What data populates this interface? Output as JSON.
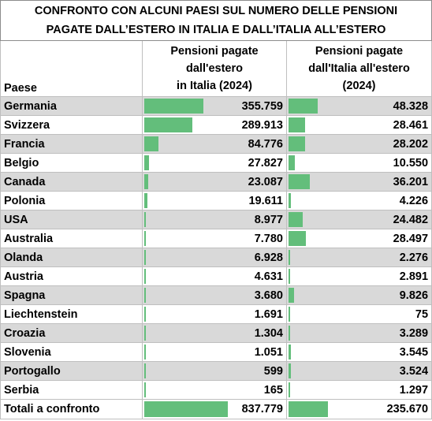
{
  "title_line1": "CONFRONTO CON ALCUNI PAESI SUL NUMERO DELLE PENSIONI",
  "title_line2": "PAGATE DALL’ESTERO IN ITALIA E DALL’ITALIA ALL’ESTERO",
  "headers": {
    "country": "Paese",
    "col1": [
      "Pensioni pagate",
      "dall'estero",
      "in Italia (2024)"
    ],
    "col2": [
      "Pensioni pagate",
      "dall'Italia all'estero",
      "(2024)"
    ]
  },
  "bar_color": "#63be7b",
  "shade_color": "#d9d9d9",
  "rows": [
    {
      "country": "Germania",
      "col1": "355.759",
      "col2": "48.328",
      "v1": 355759,
      "v2": 48328
    },
    {
      "country": "Svizzera",
      "col1": "289.913",
      "col2": "28.461",
      "v1": 289913,
      "v2": 28461
    },
    {
      "country": "Francia",
      "col1": "84.776",
      "col2": "28.202",
      "v1": 84776,
      "v2": 28202
    },
    {
      "country": "Belgio",
      "col1": "27.827",
      "col2": "10.550",
      "v1": 27827,
      "v2": 10550
    },
    {
      "country": "Canada",
      "col1": "23.087",
      "col2": "36.201",
      "v1": 23087,
      "v2": 36201
    },
    {
      "country": "Polonia",
      "col1": "19.611",
      "col2": "4.226",
      "v1": 19611,
      "v2": 4226
    },
    {
      "country": "USA",
      "col1": "8.977",
      "col2": "24.482",
      "v1": 8977,
      "v2": 24482
    },
    {
      "country": "Australia",
      "col1": "7.780",
      "col2": "28.497",
      "v1": 7780,
      "v2": 28497
    },
    {
      "country": "Olanda",
      "col1": "6.928",
      "col2": "2.276",
      "v1": 6928,
      "v2": 2276
    },
    {
      "country": "Austria",
      "col1": "4.631",
      "col2": "2.891",
      "v1": 4631,
      "v2": 2891
    },
    {
      "country": "Spagna",
      "col1": "3.680",
      "col2": "9.826",
      "v1": 3680,
      "v2": 9826
    },
    {
      "country": "Liechtenstein",
      "col1": "1.691",
      "col2": "75",
      "v1": 1691,
      "v2": 75
    },
    {
      "country": "Croazia",
      "col1": "1.304",
      "col2": "3.289",
      "v1": 1304,
      "v2": 3289
    },
    {
      "country": "Slovenia",
      "col1": "1.051",
      "col2": "3.545",
      "v1": 1051,
      "v2": 3545
    },
    {
      "country": "Portogallo",
      "col1": "599",
      "col2": "3.524",
      "v1": 599,
      "v2": 3524
    },
    {
      "country": "Serbia",
      "col1": "165",
      "col2": "1.297",
      "v1": 165,
      "v2": 1297
    }
  ],
  "total": {
    "country": "Totali a confronto",
    "col1": "837.779",
    "col2": "235.670",
    "v1": 837779,
    "v2": 235670
  }
}
